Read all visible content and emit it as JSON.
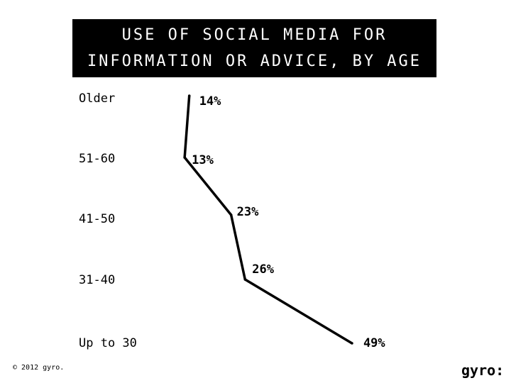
{
  "chart_data": {
    "type": "line",
    "title_lines": [
      "USE OF SOCIAL MEDIA FOR",
      "INFORMATION OR ADVICE, BY AGE"
    ],
    "categories": [
      "Older",
      "51-60",
      "41-50",
      "31-40",
      "Up to 30"
    ],
    "values": [
      14,
      13,
      23,
      26,
      49
    ],
    "value_labels": [
      "14%",
      "13%",
      "23%",
      "26%",
      "49%"
    ],
    "xlim": [
      0,
      60
    ],
    "orientation": "horizontal",
    "grid": false,
    "line_color": "#000000"
  },
  "footer": {
    "copyright": "© 2012 gyro.",
    "logo": "gyro:"
  }
}
